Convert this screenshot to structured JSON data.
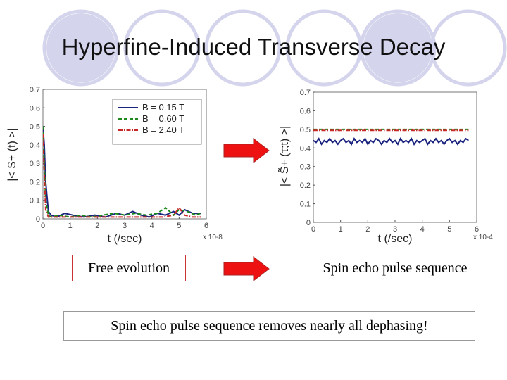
{
  "slide": {
    "title": "Hyperfine-Induced Transverse Decay",
    "caption_left": "Free evolution",
    "caption_right": "Spin echo pulse sequence",
    "conclusion": "Spin echo pulse sequence removes nearly all dephasing!"
  },
  "colors": {
    "deco_circle": "#d4d4ec",
    "arrow_fill": "#ee1111",
    "arrow_stroke": "#aa2222"
  },
  "chart_data": [
    {
      "type": "line",
      "xlabel": "t (/sec)",
      "ylabel": "|< S+ (t) >|",
      "x_multiplier": "x 10-8",
      "xlim": [
        0,
        6
      ],
      "ylim": [
        0,
        0.7
      ],
      "xticks": [
        "0",
        "1",
        "2",
        "3",
        "4",
        "5",
        "6"
      ],
      "yticks": [
        "0",
        "0.1",
        "0.2",
        "0.3",
        "0.4",
        "0.5",
        "0.6",
        "0.7"
      ],
      "legend_position": "top-right",
      "grid": false,
      "series": [
        {
          "name": "B = 0.15 T",
          "color": "#1a237e",
          "dash": "solid",
          "x": [
            0,
            0.05,
            0.1,
            0.2,
            0.3,
            0.5,
            0.8,
            1.1,
            1.5,
            1.9,
            2.3,
            2.7,
            3.0,
            3.3,
            3.6,
            3.9,
            4.2,
            4.5,
            4.8,
            5.0,
            5.2,
            5.5,
            5.8
          ],
          "y": [
            0.5,
            0.4,
            0.2,
            0.04,
            0.02,
            0.01,
            0.03,
            0.02,
            0.01,
            0.02,
            0.01,
            0.03,
            0.02,
            0.04,
            0.02,
            0.01,
            0.03,
            0.02,
            0.04,
            0.02,
            0.05,
            0.03,
            0.03
          ]
        },
        {
          "name": "B = 0.60 T",
          "color": "#1b8a1b",
          "dash": "dashed",
          "x": [
            0,
            0.05,
            0.1,
            0.2,
            0.3,
            0.6,
            1.0,
            1.4,
            1.8,
            2.2,
            2.6,
            3.0,
            3.4,
            3.8,
            4.2,
            4.5,
            4.8,
            5.0,
            5.3,
            5.6,
            5.8
          ],
          "y": [
            0.5,
            0.3,
            0.1,
            0.02,
            0.01,
            0.02,
            0.01,
            0.02,
            0.01,
            0.02,
            0.03,
            0.02,
            0.03,
            0.02,
            0.03,
            0.06,
            0.02,
            0.05,
            0.04,
            0.02,
            0.03
          ]
        },
        {
          "name": "B = 2.40 T",
          "color": "#c62828",
          "dash": "dashdot",
          "x": [
            0,
            0.05,
            0.1,
            0.2,
            0.4,
            0.8,
            1.2,
            1.6,
            2.0,
            2.4,
            2.8,
            3.2,
            3.6,
            4.0,
            4.4,
            4.8,
            5.0,
            5.2,
            5.5,
            5.8
          ],
          "y": [
            0.46,
            0.25,
            0.05,
            0.01,
            0.01,
            0.01,
            0.01,
            0.01,
            0.01,
            0.01,
            0.01,
            0.01,
            0.01,
            0.01,
            0.01,
            0.02,
            0.06,
            0.02,
            0.01,
            0.01
          ]
        }
      ]
    },
    {
      "type": "line",
      "xlabel": "t (/sec)",
      "ylabel": "|< S̃+ (τ;t) >|",
      "x_multiplier": "x 10-4",
      "xlim": [
        0,
        6
      ],
      "ylim": [
        0,
        0.7
      ],
      "xticks": [
        "0",
        "1",
        "2",
        "3",
        "4",
        "5",
        "6"
      ],
      "yticks": [
        "0",
        "0.1",
        "0.2",
        "0.3",
        "0.4",
        "0.5",
        "0.6",
        "0.7"
      ],
      "grid": false,
      "series": [
        {
          "color": "#1a237e",
          "dash": "solid",
          "x": [
            0,
            0.1,
            0.2,
            0.3,
            0.4,
            0.5,
            0.6,
            0.7,
            0.8,
            0.9,
            1.0,
            1.1,
            1.2,
            1.3,
            1.4,
            1.5,
            1.6,
            1.7,
            1.8,
            1.9,
            2.0,
            2.1,
            2.2,
            2.3,
            2.4,
            2.5,
            2.6,
            2.7,
            2.8,
            2.9,
            3.0,
            3.1,
            3.2,
            3.3,
            3.4,
            3.5,
            3.6,
            3.7,
            3.8,
            3.9,
            4.0,
            4.1,
            4.2,
            4.3,
            4.4,
            4.5,
            4.6,
            4.7,
            4.8,
            4.9,
            5.0,
            5.1,
            5.2,
            5.3,
            5.4,
            5.5,
            5.6,
            5.7
          ],
          "y": [
            0.44,
            0.43,
            0.45,
            0.42,
            0.44,
            0.43,
            0.45,
            0.43,
            0.44,
            0.42,
            0.44,
            0.45,
            0.43,
            0.44,
            0.42,
            0.45,
            0.43,
            0.44,
            0.43,
            0.45,
            0.42,
            0.44,
            0.43,
            0.45,
            0.44,
            0.42,
            0.44,
            0.43,
            0.45,
            0.43,
            0.44,
            0.42,
            0.45,
            0.43,
            0.44,
            0.43,
            0.45,
            0.42,
            0.44,
            0.43,
            0.44,
            0.45,
            0.42,
            0.44,
            0.43,
            0.45,
            0.43,
            0.44,
            0.42,
            0.44,
            0.45,
            0.43,
            0.44,
            0.42,
            0.44,
            0.43,
            0.45,
            0.44
          ]
        },
        {
          "color": "#1b8a1b",
          "dash": "dashed",
          "x": [
            0,
            5.7
          ],
          "y": [
            0.5,
            0.5
          ]
        },
        {
          "color": "#c62828",
          "dash": "dashdot",
          "x": [
            0,
            5.7
          ],
          "y": [
            0.495,
            0.495
          ]
        }
      ]
    }
  ]
}
